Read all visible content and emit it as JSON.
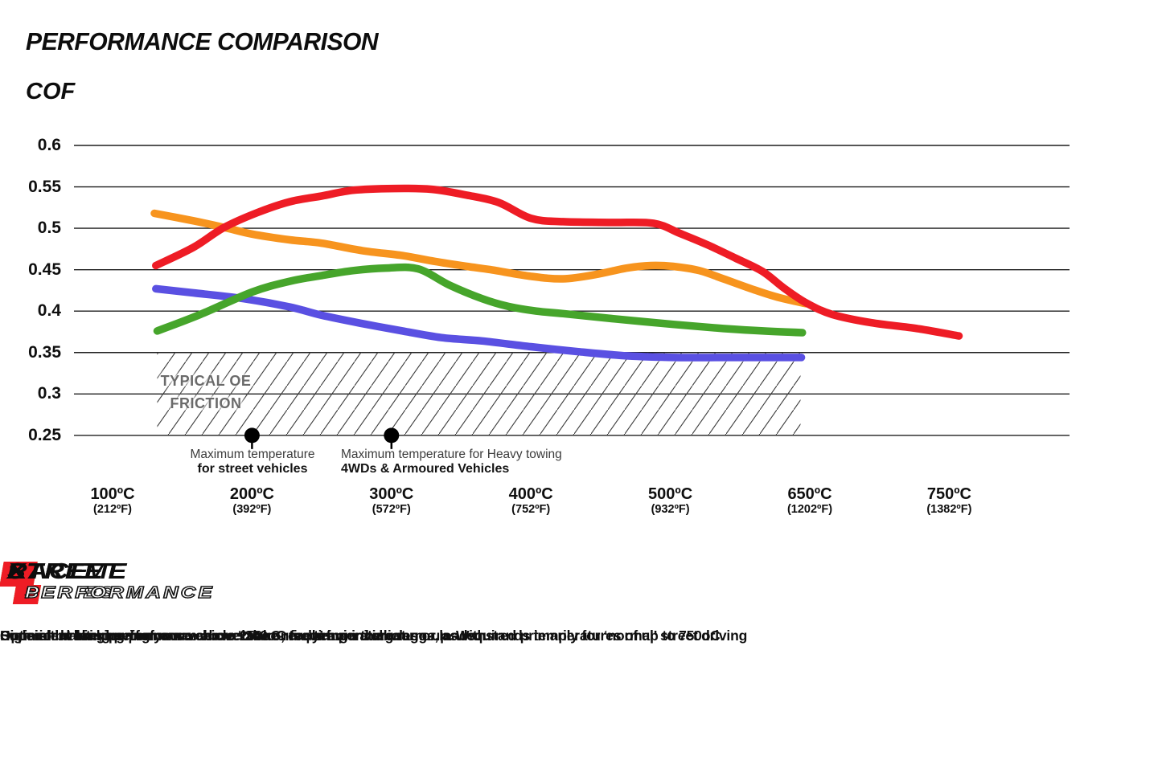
{
  "header": {
    "title": "PERFORMANCE COMPARISON",
    "axis_title": "COF"
  },
  "y_axis": {
    "labels": [
      "0.6",
      "0.55",
      "0.5",
      "0.45",
      "0.4",
      "0.35",
      "0.3",
      "0.25"
    ],
    "values": [
      0.6,
      0.55,
      0.5,
      0.45,
      0.4,
      0.35,
      0.3,
      0.25
    ]
  },
  "x_axis": {
    "ticks": [
      {
        "celsius": "100ºC",
        "fahrenheit": "(212ºF)"
      },
      {
        "celsius": "200ºC",
        "fahrenheit": "(392ºF)"
      },
      {
        "celsius": "300ºC",
        "fahrenheit": "(572ºF)"
      },
      {
        "celsius": "400ºC",
        "fahrenheit": "(752ºF)"
      },
      {
        "celsius": "500ºC",
        "fahrenheit": "(932ºF)"
      },
      {
        "celsius": "650ºC",
        "fahrenheit": "(1202ºF)"
      },
      {
        "celsius": "750ºC",
        "fahrenheit": "(1382ºF)"
      }
    ]
  },
  "oe_zone": {
    "line1": "TYPICAL OE",
    "line2": "FRICTION"
  },
  "markers": [
    {
      "line1": "Maximum temperature",
      "line2": "for street vehicles",
      "tick_index": 1
    },
    {
      "line1": "Maximum temperature for Heavy towing",
      "line2": "4WDs & Armoured Vehicles",
      "tick_index": 2
    }
  ],
  "brands": [
    {
      "word1": "STREET",
      "word2": "SERIES",
      "color": "#6a5cf0",
      "description": "Consistent braking performance over the entire temperature range, as required primarily for ‘normal’ street driving"
    },
    {
      "word1": "STREET",
      "word2": "PERFORMANCE",
      "color": "#3fae2c",
      "description": "Superior braking performance above 200oC for heavier vehicles or loads."
    },
    {
      "word1": "XTREME",
      "word2": "PERFORMANCE",
      "color": "#f7941e",
      "description": "High initial bite, having your vehicle ‘brake-ready’ from the get-go."
    },
    {
      "word1": "RACE",
      "word2": "PERFORMANCE",
      "color": "#ee1c25",
      "description": "Optimal braking performance above 250oC, requiring initial warm-up. Withstands temperatures of up to 750oC."
    }
  ],
  "chart_data": {
    "type": "line",
    "title": "PERFORMANCE COMPARISON",
    "ylabel": "COF",
    "ylim": [
      0.25,
      0.6
    ],
    "y_gridlines": [
      0.6,
      0.55,
      0.5,
      0.45,
      0.4,
      0.35,
      0.3,
      0.25
    ],
    "x_ticks_celsius": [
      100,
      200,
      300,
      400,
      500,
      650,
      750
    ],
    "grid": true,
    "legend_position": "none",
    "series": [
      {
        "name": "Street Series",
        "color": "#5a50e2",
        "points": [
          [
            131,
            0.427
          ],
          [
            158,
            0.422
          ],
          [
            194,
            0.415
          ],
          [
            227,
            0.405
          ],
          [
            250,
            0.395
          ],
          [
            279,
            0.385
          ],
          [
            308,
            0.376
          ],
          [
            336,
            0.368
          ],
          [
            365,
            0.364
          ],
          [
            400,
            0.357
          ],
          [
            434,
            0.351
          ],
          [
            469,
            0.346
          ],
          [
            506,
            0.344
          ],
          [
            557,
            0.344
          ],
          [
            600,
            0.344
          ],
          [
            641,
            0.344
          ]
        ]
      },
      {
        "name": "Street Performance",
        "color": "#46a52b",
        "points": [
          [
            132,
            0.376
          ],
          [
            163,
            0.396
          ],
          [
            200,
            0.423
          ],
          [
            227,
            0.436
          ],
          [
            250,
            0.443
          ],
          [
            273,
            0.449
          ],
          [
            296,
            0.452
          ],
          [
            319,
            0.451
          ],
          [
            342,
            0.431
          ],
          [
            365,
            0.415
          ],
          [
            383,
            0.406
          ],
          [
            404,
            0.4
          ],
          [
            423,
            0.397
          ],
          [
            458,
            0.391
          ],
          [
            503,
            0.384
          ],
          [
            557,
            0.379
          ],
          [
            600,
            0.376
          ],
          [
            642,
            0.374
          ]
        ]
      },
      {
        "name": "Xtreme Performance",
        "color": "#f7941e",
        "points": [
          [
            130,
            0.518
          ],
          [
            158,
            0.509
          ],
          [
            180,
            0.501
          ],
          [
            200,
            0.493
          ],
          [
            227,
            0.486
          ],
          [
            250,
            0.482
          ],
          [
            279,
            0.473
          ],
          [
            308,
            0.467
          ],
          [
            331,
            0.46
          ],
          [
            354,
            0.454
          ],
          [
            371,
            0.45
          ],
          [
            400,
            0.442
          ],
          [
            423,
            0.439
          ],
          [
            446,
            0.444
          ],
          [
            469,
            0.452
          ],
          [
            486,
            0.455
          ],
          [
            503,
            0.454
          ],
          [
            531,
            0.449
          ],
          [
            557,
            0.439
          ],
          [
            592,
            0.425
          ],
          [
            618,
            0.416
          ],
          [
            646,
            0.409
          ]
        ]
      },
      {
        "name": "Race Performance",
        "color": "#ee1c25",
        "points": [
          [
            131,
            0.455
          ],
          [
            158,
            0.477
          ],
          [
            180,
            0.501
          ],
          [
            204,
            0.519
          ],
          [
            227,
            0.532
          ],
          [
            250,
            0.539
          ],
          [
            273,
            0.546
          ],
          [
            302,
            0.548
          ],
          [
            329,
            0.547
          ],
          [
            354,
            0.54
          ],
          [
            377,
            0.531
          ],
          [
            400,
            0.512
          ],
          [
            423,
            0.508
          ],
          [
            458,
            0.507
          ],
          [
            488,
            0.506
          ],
          [
            510,
            0.494
          ],
          [
            540,
            0.48
          ],
          [
            570,
            0.464
          ],
          [
            599,
            0.448
          ],
          [
            622,
            0.428
          ],
          [
            646,
            0.41
          ],
          [
            666,
            0.396
          ],
          [
            694,
            0.386
          ],
          [
            727,
            0.379
          ],
          [
            757,
            0.37
          ]
        ]
      }
    ],
    "oe_friction_band": {
      "cof_range": [
        0.25,
        0.35
      ],
      "temp_range_celsius": [
        132,
        640
      ],
      "label": "TYPICAL OE FRICTION"
    },
    "annotations": [
      {
        "temp_celsius": 200,
        "cof": 0.25,
        "text": "Maximum temperature for street vehicles"
      },
      {
        "temp_celsius": 300,
        "cof": 0.25,
        "text": "Maximum temperature for Heavy towing 4WDs & Armoured Vehicles"
      }
    ]
  }
}
